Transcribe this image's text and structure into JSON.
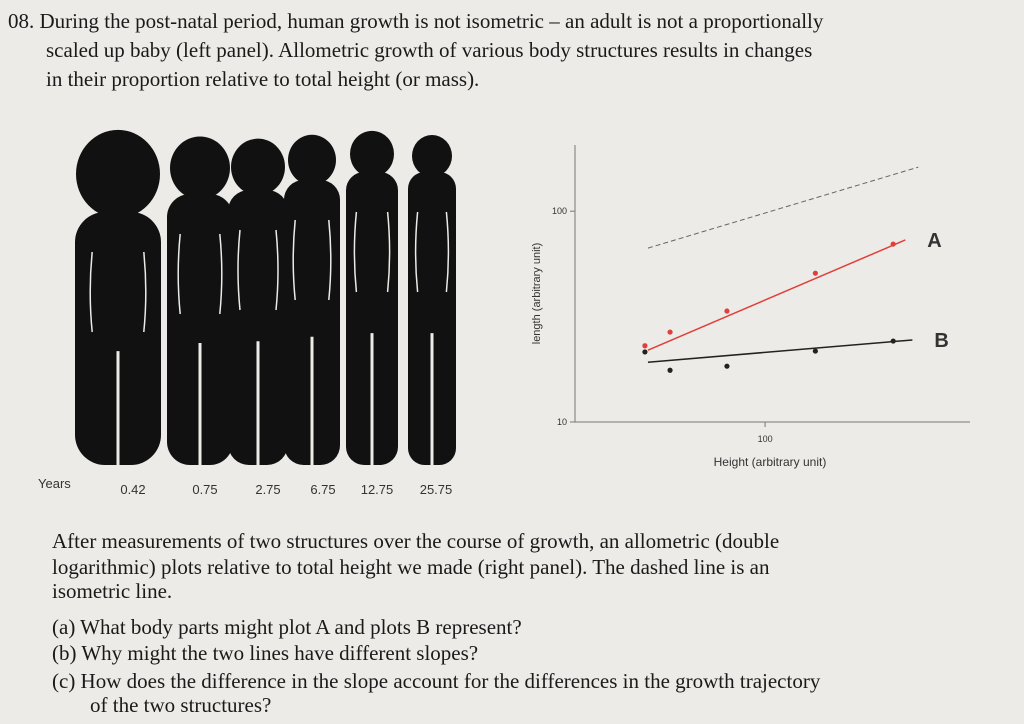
{
  "question": {
    "lines": [
      "08. During the post-natal period, human growth is not isometric – an adult is not a proportionally",
      "scaled up baby (left panel).  Allometric growth of various body structures results in changes",
      "in their proportion relative to total height (or mass)."
    ]
  },
  "figure_left": {
    "row_label": "Years",
    "ages": [
      0.42,
      0.75,
      2.75,
      6.75,
      12.75,
      25.75
    ]
  },
  "chart_data": {
    "type": "scatter",
    "xlabel": "Height (arbitrary unit)",
    "ylabel": "length (arbitrary unit)",
    "log_x": true,
    "log_y": true,
    "xlim": [
      12.6,
      933
    ],
    "ylim": [
      10,
      206
    ],
    "xticks": [
      100
    ],
    "yticks": [
      10,
      100
    ],
    "reference_line": {
      "x": [
        27.9,
        531
      ],
      "y": [
        66.8,
        161.8
      ]
    },
    "series": [
      {
        "name": "A",
        "color": "#e0403a",
        "x": [
          27,
          35.5,
          66,
          173,
          404
        ],
        "values": [
          23,
          26.7,
          33.6,
          50.8,
          69.8
        ],
        "line_x": [
          27.9,
          461
        ],
        "line_y": [
          21.9,
          73
        ]
      },
      {
        "name": "B",
        "color": "#222222",
        "x": [
          27,
          35.5,
          66,
          173,
          404
        ],
        "values": [
          21.5,
          17.6,
          18.4,
          21.7,
          24.2
        ],
        "line_x": [
          27.9,
          498
        ],
        "line_y": [
          19.2,
          24.5
        ]
      }
    ]
  },
  "body": {
    "lines": [
      "After measurements of two structures over the course of growth, an allometric (double",
      "logarithmic) plots relative to total height we made (right panel).  The dashed line is an",
      "isometric line.",
      "(a) What body parts might plot A and plots B represent?",
      "(b) Why might the two lines have different slopes?",
      "(c) How does the difference in the slope account for the differences in the growth trajectory",
      "of the two structures?"
    ]
  }
}
